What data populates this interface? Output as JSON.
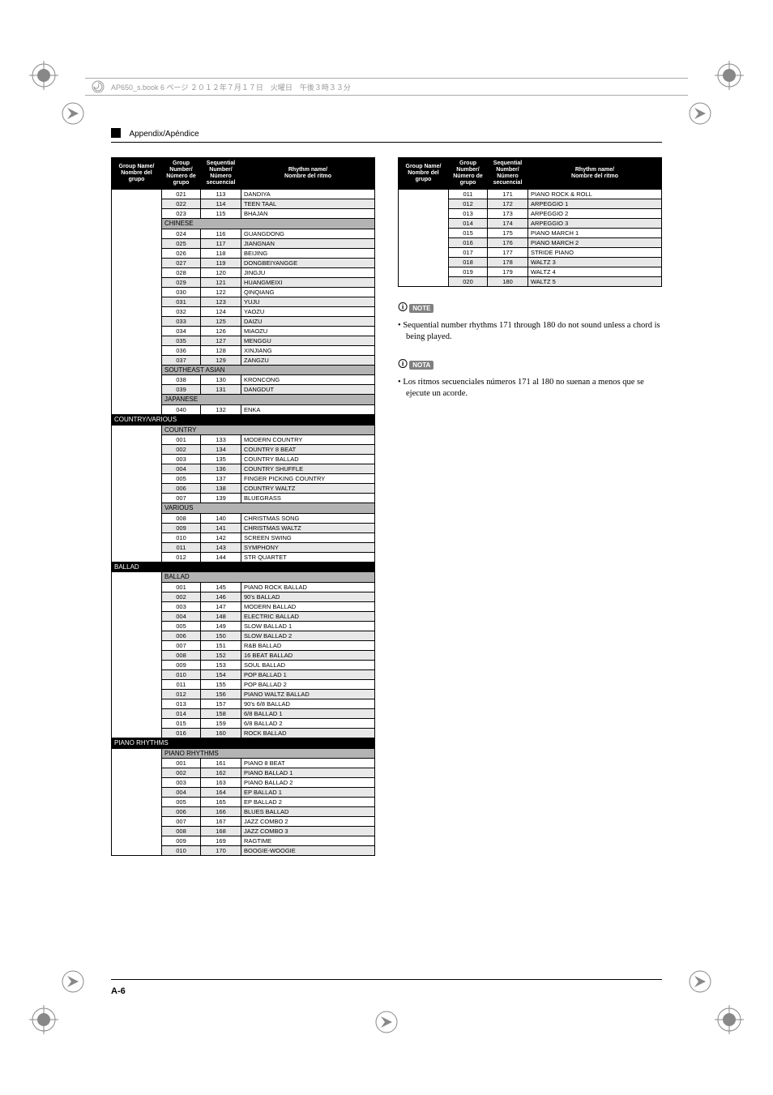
{
  "header_meta": "AP650_s.book  6 ページ  ２０１２年７月１７日　火曜日　午後３時３３分",
  "section_title": "Appendix/Apéndice",
  "page_number": "A-6",
  "headers": {
    "group_name": "Group Name/\nNombre del\ngrupo",
    "group_number": "Group\nNumber/\nNúmero de\ngrupo",
    "seq_number": "Sequential\nNumber/\nNúmero\nsecuencial",
    "rhythm_name": "Rhythm name/\nNombre del ritmo"
  },
  "note1_label": "NOTE",
  "note1_text": "Sequential number rhythms 171 through 180 do not sound unless a chord is being played.",
  "note2_label": "NOTA",
  "note2_text": "Los ritmos secuenciales números 171 al 180 no suenan a menos que se ejecute un acorde.",
  "left_table": [
    {
      "t": "d",
      "shade": 0,
      "g": "021",
      "s": "113",
      "n": "DANDIYA"
    },
    {
      "t": "d",
      "shade": 1,
      "g": "022",
      "s": "114",
      "n": "TEEN TAAL"
    },
    {
      "t": "d",
      "shade": 0,
      "g": "023",
      "s": "115",
      "n": "BHAJAN"
    },
    {
      "t": "sub",
      "label": "CHINESE"
    },
    {
      "t": "d",
      "shade": 0,
      "g": "024",
      "s": "116",
      "n": "GUANGDONG"
    },
    {
      "t": "d",
      "shade": 1,
      "g": "025",
      "s": "117",
      "n": "JIANGNAN"
    },
    {
      "t": "d",
      "shade": 0,
      "g": "026",
      "s": "118",
      "n": "BEIJING"
    },
    {
      "t": "d",
      "shade": 1,
      "g": "027",
      "s": "119",
      "n": "DONGBEIYANGGE"
    },
    {
      "t": "d",
      "shade": 0,
      "g": "028",
      "s": "120",
      "n": "JINGJU"
    },
    {
      "t": "d",
      "shade": 1,
      "g": "029",
      "s": "121",
      "n": "HUANGMEIXI"
    },
    {
      "t": "d",
      "shade": 0,
      "g": "030",
      "s": "122",
      "n": "QINQIANG"
    },
    {
      "t": "d",
      "shade": 1,
      "g": "031",
      "s": "123",
      "n": "YUJU"
    },
    {
      "t": "d",
      "shade": 0,
      "g": "032",
      "s": "124",
      "n": "YAOZU"
    },
    {
      "t": "d",
      "shade": 1,
      "g": "033",
      "s": "125",
      "n": "DAIZU"
    },
    {
      "t": "d",
      "shade": 0,
      "g": "034",
      "s": "126",
      "n": "MIAOZU"
    },
    {
      "t": "d",
      "shade": 1,
      "g": "035",
      "s": "127",
      "n": "MENGGU"
    },
    {
      "t": "d",
      "shade": 0,
      "g": "036",
      "s": "128",
      "n": "XINJIANG"
    },
    {
      "t": "d",
      "shade": 1,
      "g": "037",
      "s": "129",
      "n": "ZANGZU"
    },
    {
      "t": "sub",
      "label": "SOUTHEAST ASIAN"
    },
    {
      "t": "d",
      "shade": 0,
      "g": "038",
      "s": "130",
      "n": "KRONCONG"
    },
    {
      "t": "d",
      "shade": 1,
      "g": "039",
      "s": "131",
      "n": "DANGDUT"
    },
    {
      "t": "sub",
      "label": "JAPANESE"
    },
    {
      "t": "d",
      "shade": 0,
      "g": "040",
      "s": "132",
      "n": "ENKA"
    },
    {
      "t": "group",
      "label": "COUNTRY/VARIOUS"
    },
    {
      "t": "sub",
      "label": "COUNTRY"
    },
    {
      "t": "d",
      "shade": 0,
      "g": "001",
      "s": "133",
      "n": "MODERN COUNTRY"
    },
    {
      "t": "d",
      "shade": 1,
      "g": "002",
      "s": "134",
      "n": "COUNTRY 8 BEAT"
    },
    {
      "t": "d",
      "shade": 0,
      "g": "003",
      "s": "135",
      "n": "COUNTRY BALLAD"
    },
    {
      "t": "d",
      "shade": 1,
      "g": "004",
      "s": "136",
      "n": "COUNTRY SHUFFLE"
    },
    {
      "t": "d",
      "shade": 0,
      "g": "005",
      "s": "137",
      "n": "FINGER PICKING COUNTRY"
    },
    {
      "t": "d",
      "shade": 1,
      "g": "006",
      "s": "138",
      "n": "COUNTRY WALTZ"
    },
    {
      "t": "d",
      "shade": 0,
      "g": "007",
      "s": "139",
      "n": "BLUEGRASS"
    },
    {
      "t": "sub",
      "label": "VARIOUS"
    },
    {
      "t": "d",
      "shade": 0,
      "g": "008",
      "s": "140",
      "n": "CHRISTMAS SONG"
    },
    {
      "t": "d",
      "shade": 1,
      "g": "009",
      "s": "141",
      "n": "CHRISTMAS WALTZ"
    },
    {
      "t": "d",
      "shade": 0,
      "g": "010",
      "s": "142",
      "n": "SCREEN SWING"
    },
    {
      "t": "d",
      "shade": 1,
      "g": "011",
      "s": "143",
      "n": "SYMPHONY"
    },
    {
      "t": "d",
      "shade": 0,
      "g": "012",
      "s": "144",
      "n": "STR QUARTET"
    },
    {
      "t": "group",
      "label": "BALLAD"
    },
    {
      "t": "sub",
      "label": "BALLAD"
    },
    {
      "t": "d",
      "shade": 0,
      "g": "001",
      "s": "145",
      "n": "PIANO ROCK BALLAD"
    },
    {
      "t": "d",
      "shade": 1,
      "g": "002",
      "s": "146",
      "n": "90's BALLAD"
    },
    {
      "t": "d",
      "shade": 0,
      "g": "003",
      "s": "147",
      "n": "MODERN BALLAD"
    },
    {
      "t": "d",
      "shade": 1,
      "g": "004",
      "s": "148",
      "n": "ELECTRIC BALLAD"
    },
    {
      "t": "d",
      "shade": 0,
      "g": "005",
      "s": "149",
      "n": "SLOW BALLAD 1"
    },
    {
      "t": "d",
      "shade": 1,
      "g": "006",
      "s": "150",
      "n": "SLOW BALLAD 2"
    },
    {
      "t": "d",
      "shade": 0,
      "g": "007",
      "s": "151",
      "n": "R&B BALLAD"
    },
    {
      "t": "d",
      "shade": 1,
      "g": "008",
      "s": "152",
      "n": "16 BEAT BALLAD"
    },
    {
      "t": "d",
      "shade": 0,
      "g": "009",
      "s": "153",
      "n": "SOUL BALLAD"
    },
    {
      "t": "d",
      "shade": 1,
      "g": "010",
      "s": "154",
      "n": "POP BALLAD 1"
    },
    {
      "t": "d",
      "shade": 0,
      "g": "011",
      "s": "155",
      "n": "POP BALLAD 2"
    },
    {
      "t": "d",
      "shade": 1,
      "g": "012",
      "s": "156",
      "n": "PIANO WALTZ BALLAD"
    },
    {
      "t": "d",
      "shade": 0,
      "g": "013",
      "s": "157",
      "n": "90's 6/8 BALLAD"
    },
    {
      "t": "d",
      "shade": 1,
      "g": "014",
      "s": "158",
      "n": "6/8 BALLAD 1"
    },
    {
      "t": "d",
      "shade": 0,
      "g": "015",
      "s": "159",
      "n": "6/8 BALLAD 2"
    },
    {
      "t": "d",
      "shade": 1,
      "g": "016",
      "s": "160",
      "n": "ROCK BALLAD"
    },
    {
      "t": "group",
      "label": "PIANO RHYTHMS"
    },
    {
      "t": "sub",
      "label": "PIANO RHYTHMS"
    },
    {
      "t": "d",
      "shade": 0,
      "g": "001",
      "s": "161",
      "n": "PIANO 8 BEAT"
    },
    {
      "t": "d",
      "shade": 1,
      "g": "002",
      "s": "162",
      "n": "PIANO BALLAD 1"
    },
    {
      "t": "d",
      "shade": 0,
      "g": "003",
      "s": "163",
      "n": "PIANO BALLAD 2"
    },
    {
      "t": "d",
      "shade": 1,
      "g": "004",
      "s": "164",
      "n": "EP BALLAD 1"
    },
    {
      "t": "d",
      "shade": 0,
      "g": "005",
      "s": "165",
      "n": "EP BALLAD 2"
    },
    {
      "t": "d",
      "shade": 1,
      "g": "006",
      "s": "166",
      "n": "BLUES BALLAD"
    },
    {
      "t": "d",
      "shade": 0,
      "g": "007",
      "s": "167",
      "n": "JAZZ COMBO 2"
    },
    {
      "t": "d",
      "shade": 1,
      "g": "008",
      "s": "168",
      "n": "JAZZ COMBO 3"
    },
    {
      "t": "d",
      "shade": 0,
      "g": "009",
      "s": "169",
      "n": "RAGTIME"
    },
    {
      "t": "d",
      "shade": 1,
      "g": "010",
      "s": "170",
      "n": "BOOGIE-WOOGIE"
    }
  ],
  "right_table": [
    {
      "t": "d",
      "shade": 0,
      "g": "011",
      "s": "171",
      "n": "PIANO ROCK & ROLL"
    },
    {
      "t": "d",
      "shade": 1,
      "g": "012",
      "s": "172",
      "n": "ARPEGGIO 1"
    },
    {
      "t": "d",
      "shade": 0,
      "g": "013",
      "s": "173",
      "n": "ARPEGGIO 2"
    },
    {
      "t": "d",
      "shade": 1,
      "g": "014",
      "s": "174",
      "n": "ARPEGGIO 3"
    },
    {
      "t": "d",
      "shade": 0,
      "g": "015",
      "s": "175",
      "n": "PIANO MARCH 1"
    },
    {
      "t": "d",
      "shade": 1,
      "g": "016",
      "s": "176",
      "n": "PIANO MARCH 2"
    },
    {
      "t": "d",
      "shade": 0,
      "g": "017",
      "s": "177",
      "n": "STRIDE PIANO"
    },
    {
      "t": "d",
      "shade": 1,
      "g": "018",
      "s": "178",
      "n": "WALTZ 3"
    },
    {
      "t": "d",
      "shade": 0,
      "g": "019",
      "s": "179",
      "n": "WALTZ 4"
    },
    {
      "t": "d",
      "shade": 1,
      "g": "020",
      "s": "180",
      "n": "WALTZ 5"
    }
  ]
}
